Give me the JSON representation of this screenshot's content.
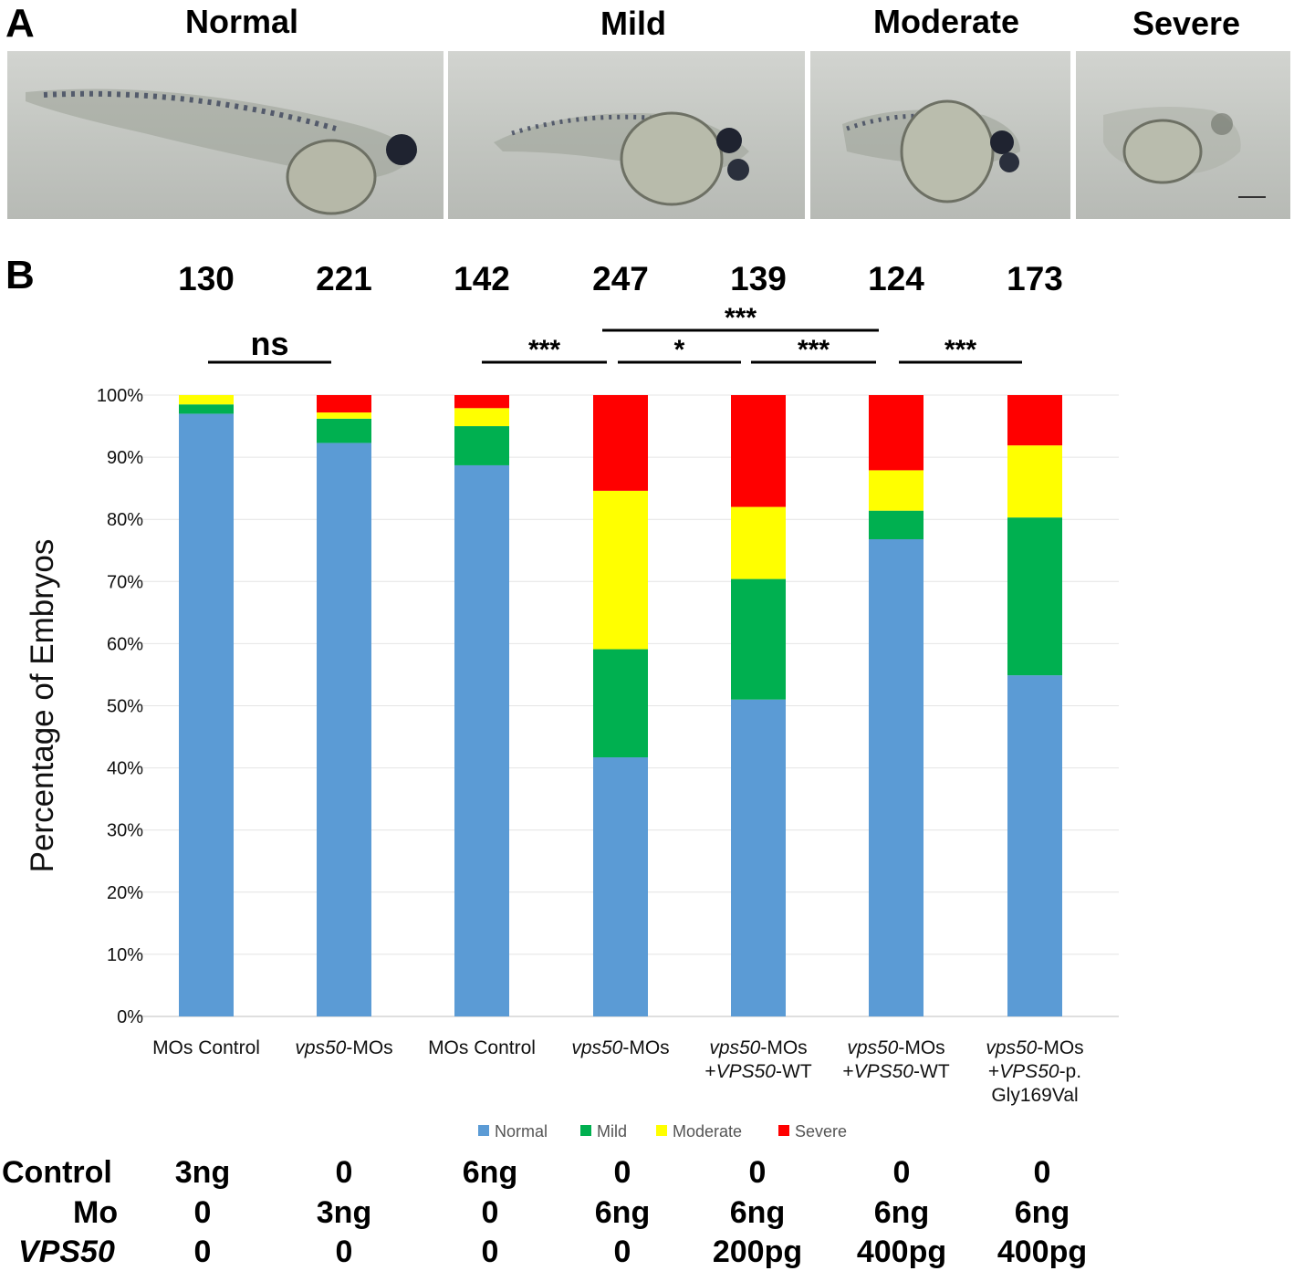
{
  "panel_a": {
    "letter": "A",
    "categories": [
      "Normal",
      "Mild",
      "Moderate",
      "Severe"
    ]
  },
  "panel_b": {
    "letter": "B"
  },
  "chart_data": {
    "type": "bar",
    "stacked": true,
    "ylabel": "Percentage of Embryos",
    "xlabel": "",
    "ylim": [
      0,
      100
    ],
    "yticks": [
      "0%",
      "10%",
      "20%",
      "30%",
      "40%",
      "50%",
      "60%",
      "70%",
      "80%",
      "90%",
      "100%"
    ],
    "grid": true,
    "legend_position": "bottom",
    "categories": [
      [
        "MOs Control"
      ],
      [
        "vps50-MOs"
      ],
      [
        "MOs Control"
      ],
      [
        "vps50-MOs"
      ],
      [
        "vps50-MOs",
        "+VPS50-WT"
      ],
      [
        "vps50-MOs",
        "+VPS50-WT"
      ],
      [
        "vps50-MOs",
        "+VPS50-p.",
        "Gly169Val"
      ]
    ],
    "sample_sizes": [
      "130",
      "221",
      "142",
      "247",
      "139",
      "124",
      "173"
    ],
    "series": [
      {
        "name": "Normal",
        "color": "#5b9bd5",
        "values": [
          97.0,
          92.3,
          88.7,
          41.7,
          51.0,
          76.8,
          54.9
        ]
      },
      {
        "name": "Mild",
        "color": "#00b050",
        "values": [
          1.5,
          3.9,
          6.3,
          17.4,
          19.4,
          4.6,
          25.4
        ]
      },
      {
        "name": "Moderate",
        "color": "#ffff00",
        "values": [
          1.5,
          1.0,
          2.9,
          25.5,
          11.6,
          6.5,
          11.6
        ]
      },
      {
        "name": "Severe",
        "color": "#ff0000",
        "values": [
          0.0,
          2.8,
          2.1,
          15.4,
          18.0,
          12.1,
          8.1
        ]
      }
    ],
    "significance": [
      {
        "label": "ns",
        "from": 0,
        "to": 1
      },
      {
        "label": "***",
        "from": 2,
        "to": 3
      },
      {
        "label": "*",
        "from": 3,
        "to": 4
      },
      {
        "label": "***",
        "from": 4,
        "to": 5
      },
      {
        "label": "***",
        "from": 3,
        "to": 5
      },
      {
        "label": "***",
        "from": 5,
        "to": 6
      }
    ]
  },
  "dose_table": {
    "rows": [
      {
        "label": "Control",
        "values": [
          "3ng",
          "0",
          "6ng",
          "0",
          "0",
          "0",
          "0"
        ]
      },
      {
        "label": "Mo",
        "values": [
          "0",
          "3ng",
          "0",
          "6ng",
          "6ng",
          "6ng",
          "6ng"
        ]
      },
      {
        "label": "VPS50",
        "values": [
          "0",
          "0",
          "0",
          "0",
          "200pg",
          "400pg",
          "400pg"
        ]
      }
    ]
  }
}
